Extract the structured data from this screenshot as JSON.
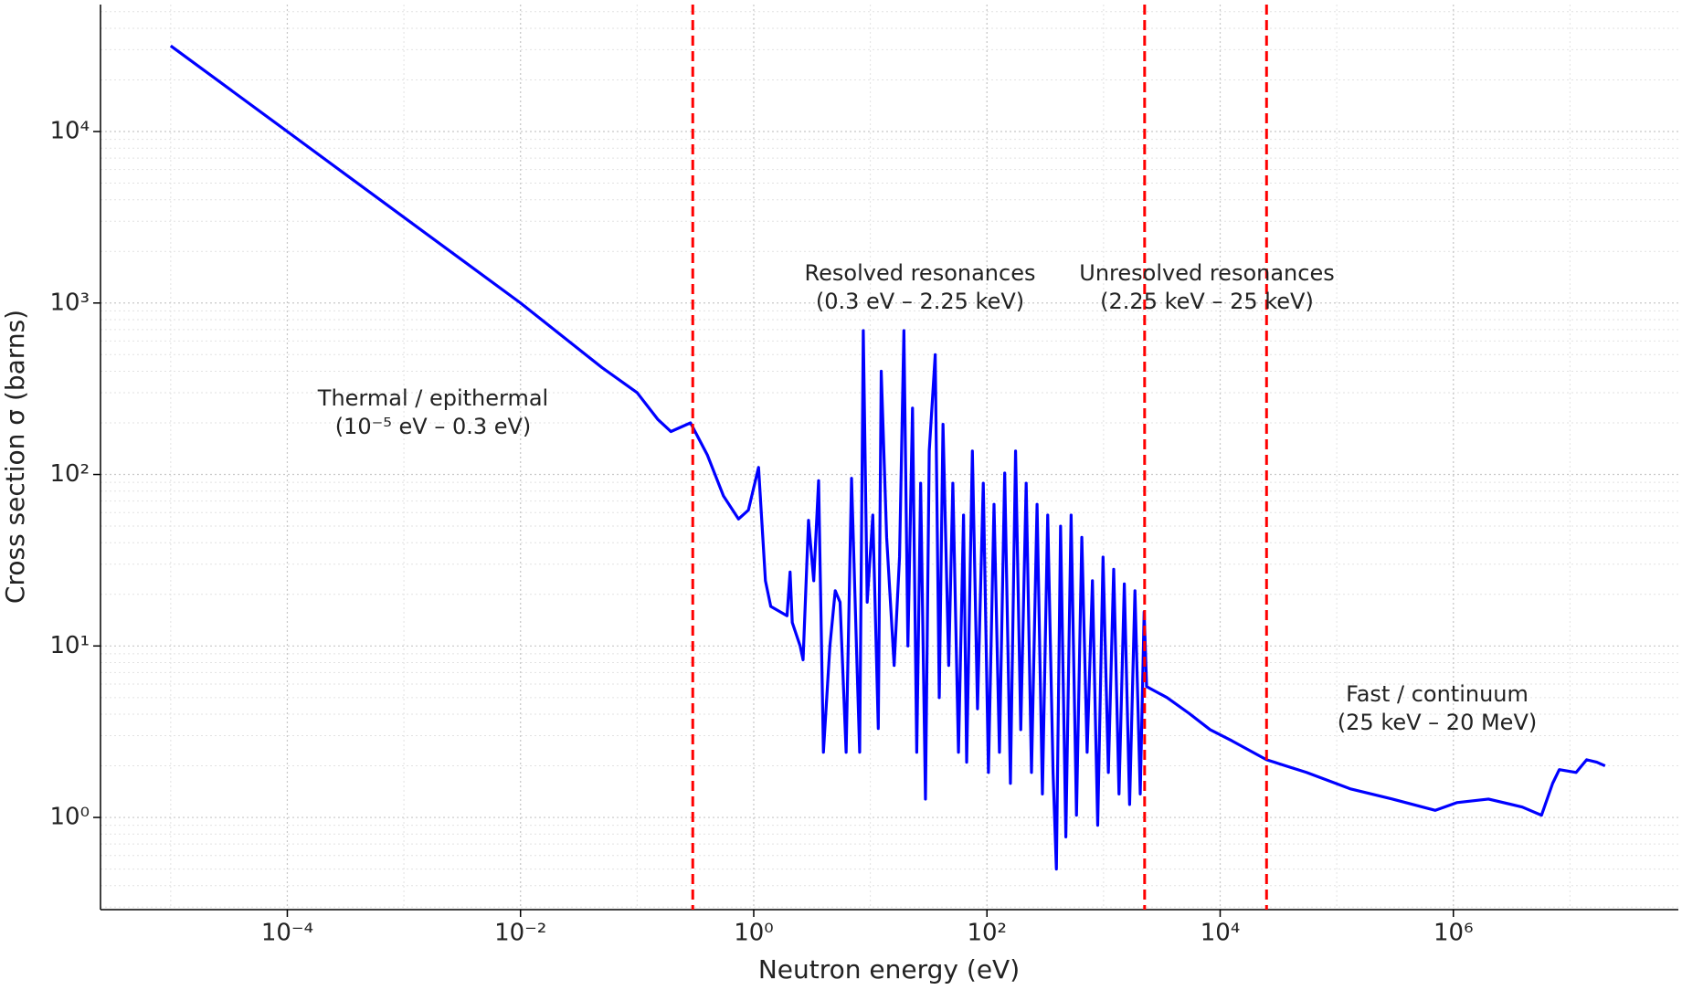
{
  "chart_data": {
    "type": "line",
    "xlabel": "Neutron energy (eV)",
    "ylabel": "Cross section σ (barns)",
    "xscale": "log",
    "yscale": "log",
    "grid": true,
    "minor_grid": true,
    "xlim": [
      2.5e-06,
      85000000.0
    ],
    "ylim": [
      0.29,
      55000
    ],
    "xticks": [
      {
        "value": 0.0001,
        "label": "10⁻⁴"
      },
      {
        "value": 0.01,
        "label": "10⁻²"
      },
      {
        "value": 1,
        "label": "10⁰"
      },
      {
        "value": 100,
        "label": "10²"
      },
      {
        "value": 10000,
        "label": "10⁴"
      },
      {
        "value": 1000000,
        "label": "10⁶"
      }
    ],
    "yticks": [
      {
        "value": 1,
        "label": "10⁰"
      },
      {
        "value": 10,
        "label": "10¹"
      },
      {
        "value": 100,
        "label": "10²"
      },
      {
        "value": 1000,
        "label": "10³"
      },
      {
        "value": 10000,
        "label": "10⁴"
      }
    ],
    "x": [
      1e-05,
      0.0001,
      0.001,
      0.01,
      0.05,
      0.1,
      0.15,
      0.195,
      0.287,
      0.4,
      0.55,
      0.74,
      0.9,
      1.1,
      1.26,
      1.4,
      1.93,
      2.05,
      2.14,
      2.5,
      2.65,
      2.95,
      3.27,
      3.6,
      3.96,
      4.5,
      5,
      5.5,
      6.2,
      6.9,
      7.6,
      8.1,
      8.7,
      9.4,
      10.5,
      11.7,
      12.4,
      13.8,
      16,
      17.8,
      19.4,
      21,
      23,
      25,
      27,
      29.7,
      32,
      36,
      39,
      42,
      47,
      51,
      57,
      63,
      67,
      75,
      83,
      93,
      103,
      115,
      128,
      142,
      159,
      176,
      195,
      217,
      241,
      269,
      299,
      332,
      369,
      394,
      428,
      475,
      527,
      586,
      651,
      723,
      803,
      891,
      990,
      1100,
      1222,
      1357,
      1507,
      1673,
      1859,
      2064,
      2230,
      2340,
      3500,
      5400,
      8200,
      12600,
      25000,
      55000,
      130000,
      300000,
      700000,
      1070000,
      2000000,
      3900000,
      5700000,
      7100000,
      8100000,
      11300000,
      13900000,
      17000000,
      20000000
    ],
    "series": [
      {
        "color": "#0000ff",
        "values": [
          31600,
          10000,
          3160,
          1000,
          420,
          300,
          210,
          178,
          200,
          130,
          75,
          55,
          62,
          110,
          24,
          17,
          15,
          27,
          13.7,
          10,
          8.3,
          54,
          24,
          92,
          2.4,
          10,
          21,
          18,
          2.4,
          95,
          10,
          2.4,
          690,
          18,
          58,
          3.3,
          400,
          43,
          7.7,
          33,
          690,
          10,
          244,
          2.4,
          89,
          1.28,
          137,
          500,
          5,
          196,
          7.7,
          89,
          2.4,
          58,
          2.1,
          137,
          4.3,
          89,
          1.83,
          67,
          2.4,
          102,
          1.58,
          137,
          3.25,
          89,
          1.83,
          67,
          1.37,
          58,
          1.83,
          0.5,
          50,
          0.77,
          58,
          1.03,
          43,
          2.4,
          24,
          0.9,
          33,
          1.83,
          28,
          1.37,
          23,
          1.19,
          21,
          1.37,
          15.8,
          5.8,
          5,
          4.05,
          3.25,
          2.8,
          2.17,
          1.83,
          1.47,
          1.28,
          1.1,
          1.22,
          1.28,
          1.15,
          1.03,
          1.58,
          1.9,
          1.83,
          2.17,
          2.1,
          2.0
        ]
      }
    ],
    "vlines": [
      {
        "x": 0.3,
        "color": "#ff0000"
      },
      {
        "x": 2250,
        "color": "#ff0000"
      },
      {
        "x": 25000,
        "color": "#ff0000"
      }
    ],
    "annotations": [
      {
        "lines": [
          "Thermal / epithermal",
          "(10⁻⁵ eV – 0.3 eV)"
        ]
      },
      {
        "lines": [
          "Resolved resonances",
          "(0.3 eV – 2.25 keV)"
        ]
      },
      {
        "lines": [
          "Unresolved resonances",
          "(2.25 keV – 25 keV)"
        ]
      },
      {
        "lines": [
          "Fast / continuum",
          "(25 keV – 20 MeV)"
        ]
      }
    ]
  }
}
